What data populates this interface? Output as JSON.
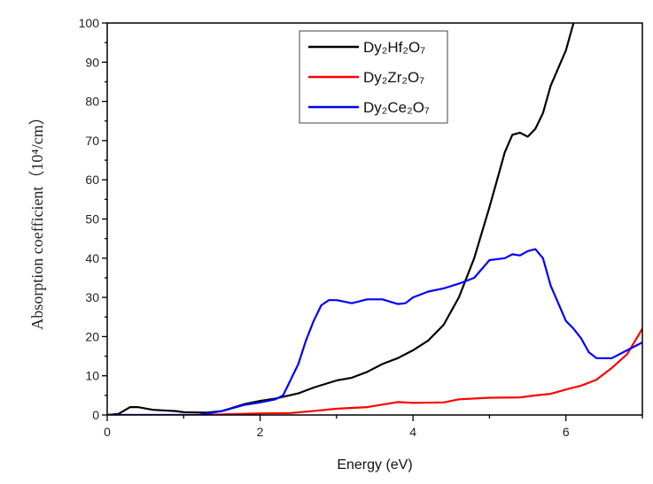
{
  "chart_data": {
    "type": "line",
    "xlabel": "Energy (eV)",
    "ylabel": "Absorption coefficient（10⁴/cm）",
    "xlim": [
      0,
      7
    ],
    "ylim": [
      0,
      100
    ],
    "xticks": [
      "0",
      "2",
      "4",
      "6"
    ],
    "yticks": [
      "0",
      "10",
      "20",
      "30",
      "40",
      "50",
      "60",
      "70",
      "80",
      "90",
      "100"
    ],
    "grid": false,
    "legend_position": "top-center",
    "series": [
      {
        "name": "Dy₂Hf₂O₇",
        "color": "#000000",
        "x": [
          0,
          0.15,
          0.3,
          0.4,
          0.6,
          0.9,
          1.0,
          1.3,
          1.5,
          1.8,
          2.0,
          2.2,
          2.5,
          2.7,
          3.0,
          3.2,
          3.4,
          3.6,
          3.8,
          4.0,
          4.2,
          4.4,
          4.6,
          4.8,
          5.0,
          5.1,
          5.2,
          5.3,
          5.4,
          5.5,
          5.6,
          5.7,
          5.8,
          6.0,
          6.1
        ],
        "y": [
          0,
          0.3,
          2,
          2,
          1.3,
          1,
          0.7,
          0.6,
          1,
          2.8,
          3.6,
          4.2,
          5.5,
          7,
          8.8,
          9.5,
          11,
          13,
          14.5,
          16.5,
          19,
          23,
          30,
          40,
          53,
          60,
          67,
          71.5,
          72,
          71,
          73,
          77,
          84,
          93,
          100
        ]
      },
      {
        "name": "Dy₂Zr₂O₇",
        "color": "#ff0000",
        "x": [
          0,
          1.3,
          1.6,
          2.0,
          2.4,
          2.8,
          3.0,
          3.4,
          3.8,
          4.0,
          4.4,
          4.6,
          5.0,
          5.4,
          5.6,
          5.8,
          6.0,
          6.2,
          6.4,
          6.6,
          6.8,
          7.0
        ],
        "y": [
          0,
          0,
          0.2,
          0.4,
          0.5,
          1.2,
          1.6,
          2,
          3.3,
          3.1,
          3.2,
          4,
          4.4,
          4.5,
          5,
          5.4,
          6.5,
          7.5,
          9,
          12,
          15.5,
          22
        ]
      },
      {
        "name": "Dy₂Ce₂O₇",
        "color": "#0000ff",
        "x": [
          0,
          1.2,
          1.5,
          1.8,
          2.0,
          2.2,
          2.3,
          2.4,
          2.5,
          2.6,
          2.7,
          2.8,
          2.9,
          3.0,
          3.2,
          3.4,
          3.6,
          3.8,
          3.9,
          4.0,
          4.2,
          4.4,
          4.6,
          4.8,
          5.0,
          5.2,
          5.3,
          5.4,
          5.5,
          5.6,
          5.7,
          5.8,
          6.0,
          6.1,
          6.2,
          6.3,
          6.4,
          6.6,
          6.8,
          7.0
        ],
        "y": [
          0,
          0,
          1,
          2.6,
          3.2,
          4,
          5,
          9,
          13,
          19,
          24,
          28,
          29.3,
          29.3,
          28.5,
          29.5,
          29.5,
          28.3,
          28.5,
          30,
          31.5,
          32.3,
          33.5,
          35,
          39.5,
          40,
          41,
          40.7,
          41.8,
          42.3,
          40,
          33,
          24,
          22,
          19.5,
          16,
          14.5,
          14.5,
          16.5,
          18.5
        ]
      }
    ]
  }
}
